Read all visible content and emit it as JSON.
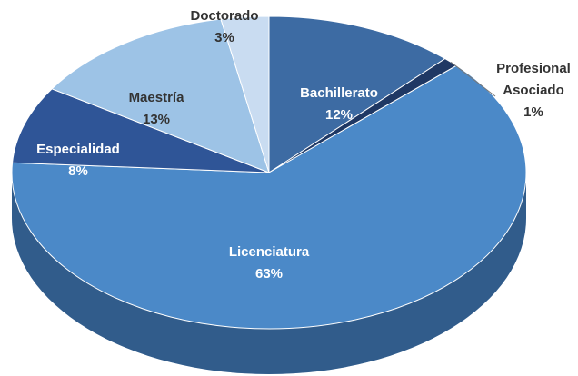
{
  "chart_data": {
    "type": "pie3d",
    "categories": [
      "Bachillerato",
      "Profesional Asociado",
      "Licenciatura",
      "Especialidad",
      "Maestría",
      "Doctorado"
    ],
    "values": [
      12,
      1,
      63,
      8,
      13,
      3
    ],
    "value_labels": [
      "12%",
      "1%",
      "63%",
      "8%",
      "13%",
      "3%"
    ],
    "colors": [
      "#3d6ba3",
      "#1f3864",
      "#4b89c8",
      "#2f5597",
      "#9dc3e6",
      "#c9dcf1"
    ]
  }
}
